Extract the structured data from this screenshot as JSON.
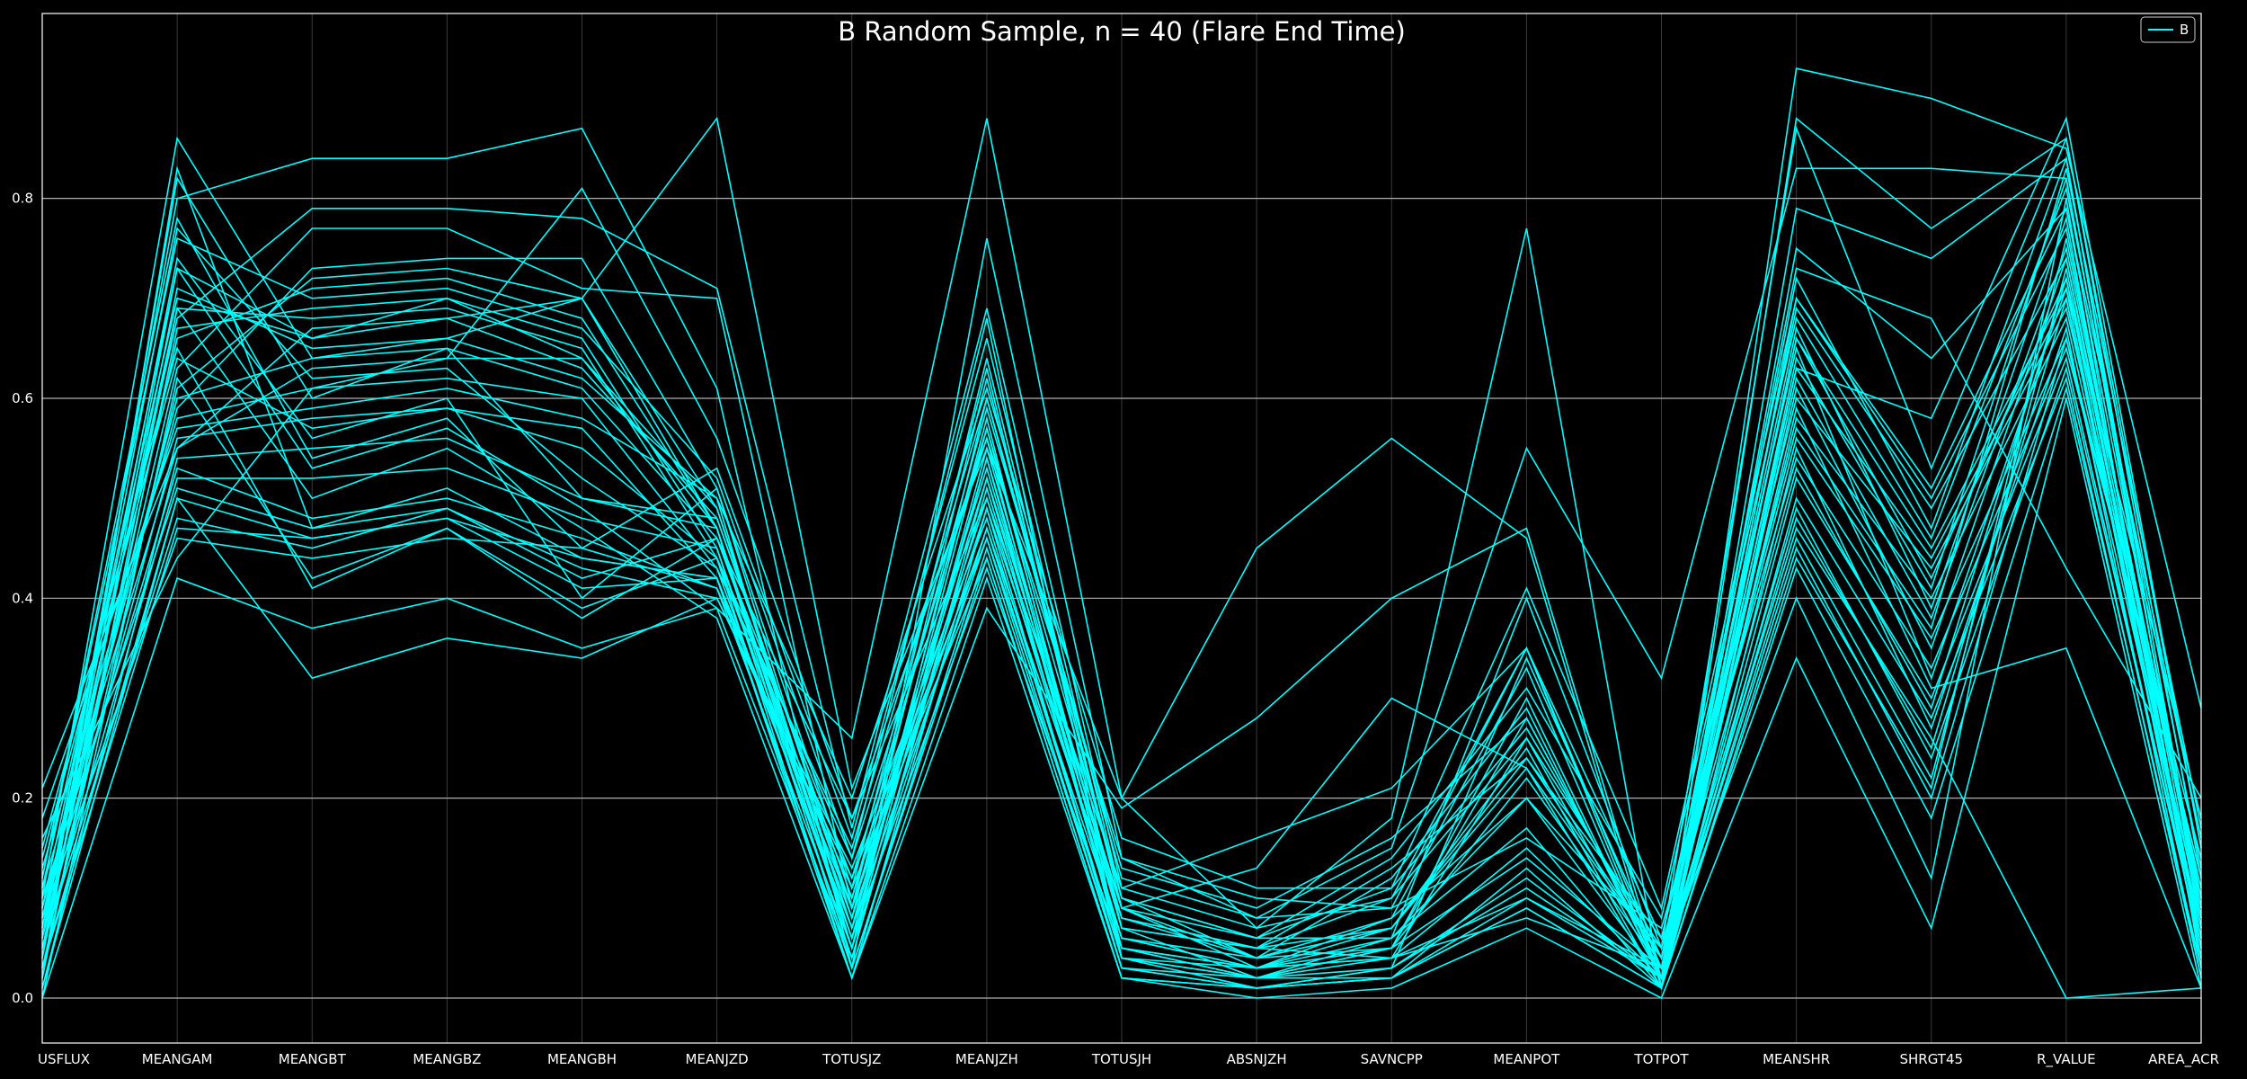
{
  "chart_data": {
    "type": "line",
    "subtype": "parallel-coordinates",
    "title": "B Random Sample, n = 40 (Flare End Time)",
    "categories": [
      "USFLUX",
      "MEANGAM",
      "MEANGBT",
      "MEANGBZ",
      "MEANGBH",
      "MEANJZD",
      "TOTUSJZ",
      "MEANJZH",
      "TOTUSJH",
      "ABSNJZH",
      "SAVNCPP",
      "MEANPOT",
      "TOTPOT",
      "MEANSHR",
      "SHRGT45",
      "R_VALUE",
      "AREA_ACR"
    ],
    "yticks": [
      "0.0",
      "0.2",
      "0.4",
      "0.6",
      "0.8"
    ],
    "ylim": [
      -0.045,
      0.985
    ],
    "grid": true,
    "legend": {
      "position": "top-right",
      "entries": [
        "B"
      ]
    },
    "colors": {
      "background": "#000000",
      "line": "#00ffff",
      "grid": "#b0b0b0",
      "axis": "#ffffff"
    },
    "series": [
      {
        "values": [
          0.04,
          0.73,
          0.66,
          0.7,
          0.64,
          0.49,
          0.09,
          0.52,
          0.09,
          0.03,
          0.04,
          0.26,
          0.02,
          0.62,
          0.38,
          0.75,
          0.1
        ]
      },
      {
        "values": [
          0.1,
          0.86,
          0.64,
          0.66,
          0.7,
          0.47,
          0.05,
          0.6,
          0.1,
          0.04,
          0.05,
          0.28,
          0.03,
          0.66,
          0.42,
          0.72,
          0.05
        ]
      },
      {
        "values": [
          0.0,
          0.42,
          0.37,
          0.4,
          0.35,
          0.39,
          0.26,
          0.88,
          0.2,
          0.45,
          0.56,
          0.46,
          0.01,
          0.93,
          0.9,
          0.85,
          0.29
        ]
      },
      {
        "values": [
          0.02,
          0.83,
          0.47,
          0.51,
          0.44,
          0.42,
          0.02,
          0.39,
          0.19,
          0.28,
          0.4,
          0.47,
          0.02,
          0.88,
          0.77,
          0.86,
          0.12
        ]
      },
      {
        "values": [
          0.06,
          0.8,
          0.84,
          0.84,
          0.87,
          0.61,
          0.03,
          0.76,
          0.14,
          0.08,
          0.15,
          0.55,
          0.32,
          0.83,
          0.83,
          0.82,
          0.08
        ]
      },
      {
        "values": [
          0.03,
          0.5,
          0.32,
          0.36,
          0.34,
          0.4,
          0.12,
          0.46,
          0.03,
          0.01,
          0.02,
          0.1,
          0.03,
          0.47,
          0.26,
          0.0,
          0.01
        ]
      },
      {
        "values": [
          0.16,
          0.44,
          0.61,
          0.64,
          0.81,
          0.56,
          0.18,
          0.56,
          0.04,
          0.01,
          0.03,
          0.34,
          0.04,
          0.73,
          0.68,
          0.43,
          0.2
        ]
      },
      {
        "values": [
          0.21,
          0.55,
          0.67,
          0.68,
          0.7,
          0.88,
          0.21,
          0.55,
          0.2,
          0.07,
          0.18,
          0.77,
          0.01,
          0.63,
          0.58,
          0.88,
          0.15
        ]
      },
      {
        "values": [
          0.08,
          0.68,
          0.79,
          0.79,
          0.78,
          0.71,
          0.17,
          0.69,
          0.11,
          0.16,
          0.21,
          0.35,
          0.02,
          0.59,
          0.31,
          0.35,
          0.01
        ]
      },
      {
        "values": [
          0.06,
          0.63,
          0.77,
          0.77,
          0.71,
          0.7,
          0.09,
          0.64,
          0.09,
          0.13,
          0.3,
          0.23,
          0.01,
          0.79,
          0.74,
          0.84,
          0.09
        ]
      },
      {
        "values": [
          0.12,
          0.76,
          0.7,
          0.71,
          0.67,
          0.52,
          0.14,
          0.68,
          0.04,
          0.03,
          0.06,
          0.4,
          0.05,
          0.87,
          0.53,
          0.86,
          0.15
        ]
      },
      {
        "values": [
          0.09,
          0.59,
          0.73,
          0.74,
          0.74,
          0.51,
          0.11,
          0.63,
          0.07,
          0.02,
          0.05,
          0.3,
          0.02,
          0.75,
          0.64,
          0.79,
          0.1
        ]
      },
      {
        "values": [
          0.03,
          0.61,
          0.72,
          0.73,
          0.7,
          0.49,
          0.07,
          0.58,
          0.05,
          0.03,
          0.07,
          0.25,
          0.01,
          0.7,
          0.5,
          0.77,
          0.07
        ]
      },
      {
        "values": [
          0.05,
          0.66,
          0.71,
          0.72,
          0.68,
          0.47,
          0.06,
          0.55,
          0.08,
          0.05,
          0.1,
          0.35,
          0.03,
          0.69,
          0.49,
          0.74,
          0.09
        ]
      },
      {
        "values": [
          0.02,
          0.67,
          0.69,
          0.7,
          0.66,
          0.45,
          0.04,
          0.51,
          0.06,
          0.04,
          0.08,
          0.33,
          0.02,
          0.66,
          0.45,
          0.71,
          0.04
        ]
      },
      {
        "values": [
          0.07,
          0.69,
          0.68,
          0.69,
          0.65,
          0.44,
          0.08,
          0.49,
          0.09,
          0.06,
          0.11,
          0.27,
          0.04,
          0.63,
          0.44,
          0.7,
          0.06
        ]
      },
      {
        "values": [
          0.11,
          0.7,
          0.66,
          0.68,
          0.63,
          0.48,
          0.1,
          0.53,
          0.07,
          0.05,
          0.07,
          0.24,
          0.06,
          0.6,
          0.43,
          0.69,
          0.11
        ]
      },
      {
        "values": [
          0.04,
          0.71,
          0.65,
          0.66,
          0.62,
          0.5,
          0.05,
          0.54,
          0.05,
          0.02,
          0.05,
          0.22,
          0.03,
          0.58,
          0.4,
          0.68,
          0.08
        ]
      },
      {
        "values": [
          0.09,
          0.6,
          0.64,
          0.65,
          0.61,
          0.46,
          0.12,
          0.57,
          0.1,
          0.06,
          0.06,
          0.2,
          0.05,
          0.56,
          0.36,
          0.66,
          0.12
        ]
      },
      {
        "values": [
          0.13,
          0.58,
          0.61,
          0.62,
          0.6,
          0.43,
          0.15,
          0.6,
          0.12,
          0.08,
          0.09,
          0.16,
          0.07,
          0.54,
          0.33,
          0.65,
          0.14
        ]
      },
      {
        "values": [
          0.06,
          0.56,
          0.58,
          0.59,
          0.57,
          0.42,
          0.09,
          0.47,
          0.08,
          0.05,
          0.04,
          0.15,
          0.02,
          0.52,
          0.3,
          0.64,
          0.05
        ]
      },
      {
        "values": [
          0.01,
          0.54,
          0.55,
          0.56,
          0.5,
          0.47,
          0.03,
          0.45,
          0.03,
          0.01,
          0.02,
          0.13,
          0.01,
          0.5,
          0.28,
          0.62,
          0.02
        ]
      },
      {
        "values": [
          0.05,
          0.52,
          0.52,
          0.53,
          0.48,
          0.45,
          0.06,
          0.43,
          0.05,
          0.02,
          0.03,
          0.12,
          0.02,
          0.48,
          0.25,
          0.7,
          0.04
        ]
      },
      {
        "values": [
          0.08,
          0.53,
          0.48,
          0.5,
          0.46,
          0.41,
          0.11,
          0.44,
          0.02,
          0.01,
          0.03,
          0.11,
          0.02,
          0.46,
          0.22,
          0.73,
          0.06
        ]
      },
      {
        "values": [
          0.1,
          0.51,
          0.47,
          0.49,
          0.43,
          0.4,
          0.13,
          0.48,
          0.04,
          0.02,
          0.02,
          0.09,
          0.01,
          0.44,
          0.21,
          0.76,
          0.09
        ]
      },
      {
        "values": [
          0.03,
          0.47,
          0.46,
          0.48,
          0.41,
          0.42,
          0.07,
          0.46,
          0.06,
          0.03,
          0.04,
          0.08,
          0.03,
          0.4,
          0.12,
          0.8,
          0.03
        ]
      },
      {
        "values": [
          0.0,
          0.62,
          0.42,
          0.47,
          0.39,
          0.44,
          0.02,
          0.42,
          0.02,
          0.0,
          0.01,
          0.07,
          0.0,
          0.34,
          0.07,
          0.6,
          0.01
        ]
      },
      {
        "values": [
          0.15,
          0.65,
          0.41,
          0.47,
          0.38,
          0.46,
          0.18,
          0.5,
          0.11,
          0.07,
          0.1,
          0.26,
          0.05,
          0.57,
          0.37,
          0.83,
          0.17
        ]
      },
      {
        "values": [
          0.06,
          0.74,
          0.56,
          0.6,
          0.4,
          0.51,
          0.08,
          0.62,
          0.09,
          0.04,
          0.12,
          0.29,
          0.02,
          0.64,
          0.41,
          0.82,
          0.08
        ]
      },
      {
        "values": [
          0.12,
          0.78,
          0.54,
          0.58,
          0.45,
          0.53,
          0.16,
          0.66,
          0.1,
          0.06,
          0.14,
          0.31,
          0.08,
          0.68,
          0.46,
          0.81,
          0.13
        ]
      },
      {
        "values": [
          0.04,
          0.82,
          0.6,
          0.65,
          0.5,
          0.48,
          0.1,
          0.59,
          0.13,
          0.09,
          0.16,
          0.28,
          0.03,
          0.72,
          0.47,
          0.84,
          0.07
        ]
      },
      {
        "values": [
          0.07,
          0.77,
          0.62,
          0.63,
          0.52,
          0.43,
          0.06,
          0.57,
          0.07,
          0.05,
          0.13,
          0.24,
          0.04,
          0.67,
          0.39,
          0.78,
          0.05
        ]
      },
      {
        "values": [
          0.09,
          0.73,
          0.53,
          0.57,
          0.49,
          0.39,
          0.04,
          0.52,
          0.05,
          0.03,
          0.08,
          0.2,
          0.02,
          0.61,
          0.35,
          0.74,
          0.06
        ]
      },
      {
        "values": [
          0.02,
          0.69,
          0.5,
          0.55,
          0.47,
          0.38,
          0.02,
          0.49,
          0.03,
          0.02,
          0.06,
          0.17,
          0.01,
          0.55,
          0.27,
          0.67,
          0.02
        ]
      },
      {
        "values": [
          0.14,
          0.64,
          0.57,
          0.59,
          0.55,
          0.44,
          0.14,
          0.56,
          0.14,
          0.1,
          0.09,
          0.35,
          0.06,
          0.65,
          0.32,
          0.71,
          0.18
        ]
      },
      {
        "values": [
          0.18,
          0.57,
          0.59,
          0.61,
          0.58,
          0.5,
          0.2,
          0.61,
          0.16,
          0.11,
          0.11,
          0.41,
          0.09,
          0.7,
          0.51,
          0.79,
          0.16
        ]
      },
      {
        "values": [
          0.05,
          0.48,
          0.45,
          0.49,
          0.42,
          0.46,
          0.09,
          0.5,
          0.06,
          0.03,
          0.05,
          0.14,
          0.03,
          0.49,
          0.24,
          0.63,
          0.05
        ]
      },
      {
        "values": [
          0.08,
          0.46,
          0.44,
          0.46,
          0.45,
          0.41,
          0.05,
          0.47,
          0.04,
          0.02,
          0.04,
          0.1,
          0.02,
          0.45,
          0.2,
          0.66,
          0.07
        ]
      },
      {
        "values": [
          0.11,
          0.55,
          0.63,
          0.64,
          0.64,
          0.47,
          0.07,
          0.54,
          0.08,
          0.04,
          0.07,
          0.23,
          0.04,
          0.53,
          0.29,
          0.72,
          0.1
        ]
      },
      {
        "values": [
          0.01,
          0.5,
          0.46,
          0.48,
          0.44,
          0.42,
          0.03,
          0.44,
          0.02,
          0.01,
          0.02,
          0.09,
          0.01,
          0.43,
          0.18,
          0.61,
          0.03
        ]
      }
    ]
  }
}
